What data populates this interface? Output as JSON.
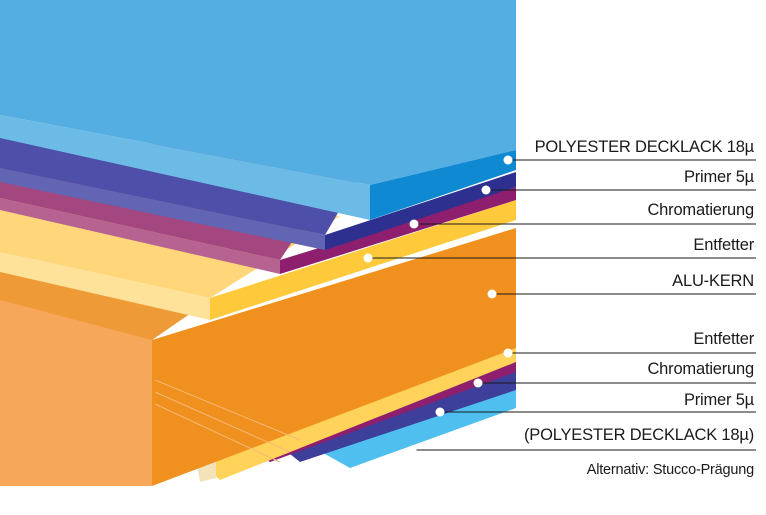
{
  "layers": [
    {
      "id": "top-coating",
      "label": "POLYESTER DECKLACK 18µ"
    },
    {
      "id": "top-primer",
      "label": "Primer 5µ"
    },
    {
      "id": "top-chromate",
      "label": "Chromatierung"
    },
    {
      "id": "top-degreaser",
      "label": "Entfetter"
    },
    {
      "id": "core",
      "label": "ALU-KERN"
    },
    {
      "id": "bottom-degreaser",
      "label": "Entfetter"
    },
    {
      "id": "bottom-chromate",
      "label": "Chromatierung"
    },
    {
      "id": "bottom-primer",
      "label": "Primer 5µ"
    },
    {
      "id": "bottom-coating",
      "label": "(POLYESTER DECKLACK 18µ)"
    }
  ],
  "note": "Alternativ: Stucco-Prägung",
  "colors": {
    "coating_blue": "#55AEE2",
    "coating_blue_dark": "#1089D3",
    "primer": "#3D3F9A",
    "chromate": "#8E1E6E",
    "degreaser": "#FFD35A",
    "core_front": "#F0901E",
    "core_side": "#F7A75A",
    "bottom_blue": "#4FBFF0"
  }
}
